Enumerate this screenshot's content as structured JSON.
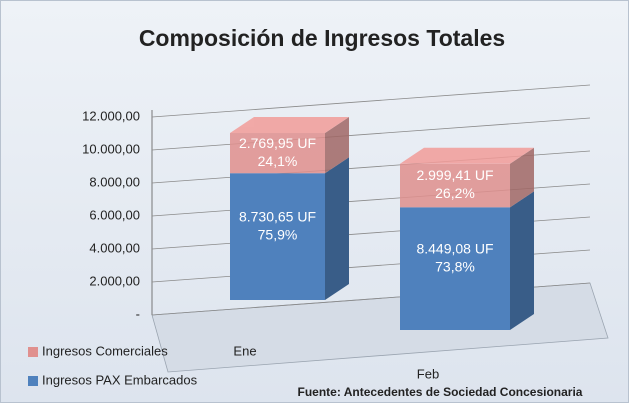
{
  "chart_data": {
    "type": "bar3d_stacked",
    "title": "Composición de Ingresos Totales",
    "categories": [
      "Ene",
      "Feb"
    ],
    "series": [
      {
        "name": "Ingresos PAX Embarcados",
        "color": "#4f81bd",
        "values": [
          8730.65,
          8449.08
        ],
        "value_labels": [
          "8.730,65 UF",
          "8.449,08 UF"
        ],
        "shares": [
          75.9,
          73.8
        ],
        "share_labels": [
          "75,9%",
          "73,8%"
        ]
      },
      {
        "name": "Ingresos Comerciales",
        "color": "#e0908e",
        "values": [
          2769.95,
          2999.41
        ],
        "value_labels": [
          "2.769,95 UF",
          "2.999,41 UF"
        ],
        "shares": [
          24.1,
          26.2
        ],
        "share_labels": [
          "24,1%",
          "26,2%"
        ]
      }
    ],
    "ylim": [
      0,
      12000
    ],
    "yticks": [
      {
        "value": 0,
        "label": "-"
      },
      {
        "value": 2000,
        "label": "2.000,00"
      },
      {
        "value": 4000,
        "label": "4.000,00"
      },
      {
        "value": 6000,
        "label": "6.000,00"
      },
      {
        "value": 8000,
        "label": "8.000,00"
      },
      {
        "value": 10000,
        "label": "10.000,00"
      },
      {
        "value": 12000,
        "label": "12.000,00"
      }
    ],
    "grid": true,
    "source": "Fuente: Antecedentes de Sociedad Concesionaria"
  }
}
